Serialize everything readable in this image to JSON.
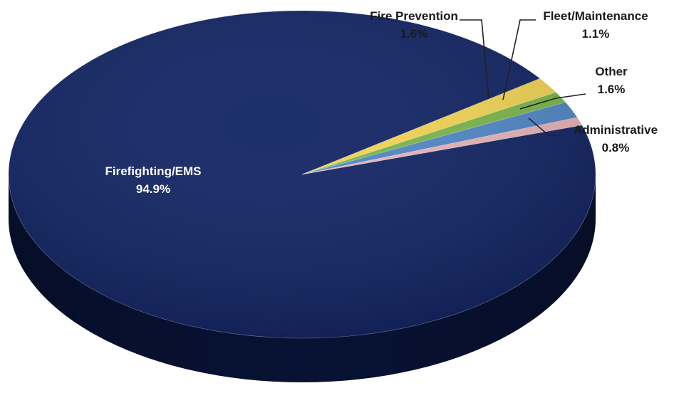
{
  "chart_data": {
    "type": "pie",
    "style": "3d",
    "slices": [
      {
        "label": "Firefighting/EMS",
        "value": 94.9,
        "display": "94.9%",
        "color": "#0f2262"
      },
      {
        "label": "Fire Prevention",
        "value": 1.6,
        "display": "1.6%",
        "color": "#f2d552"
      },
      {
        "label": "Fleet/Maintenance",
        "value": 1.1,
        "display": "1.1%",
        "color": "#7ab648"
      },
      {
        "label": "Other",
        "value": 1.6,
        "display": "1.6%",
        "color": "#4f86c6"
      },
      {
        "label": "Administrative",
        "value": 0.8,
        "display": "0.8%",
        "color": "#e8b4b8"
      }
    ]
  }
}
